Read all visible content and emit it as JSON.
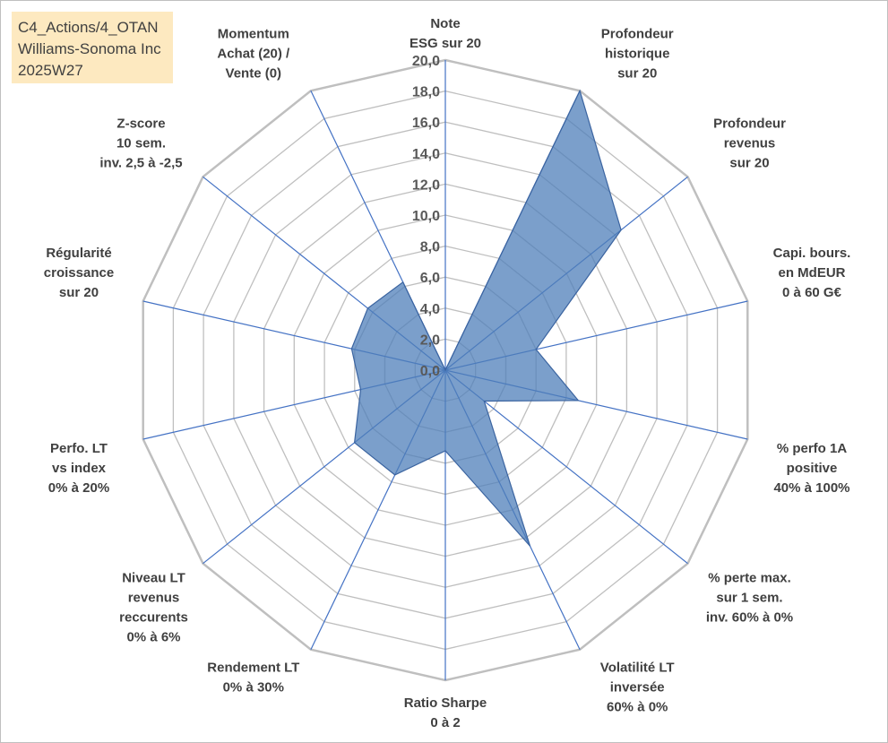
{
  "header": {
    "lines": [
      "C4_Actions/4_OTAN",
      "Williams-Sonoma Inc",
      "2025W27"
    ]
  },
  "chart_data": {
    "type": "radar",
    "rmin": 0,
    "rmax": 20,
    "tick_step": 2,
    "tick_labels": [
      "0,0",
      "2,0",
      "4,0",
      "6,0",
      "8,0",
      "10,0",
      "12,0",
      "14,0",
      "16,0",
      "18,0",
      "20,0"
    ],
    "axes": [
      {
        "label": [
          "Note",
          "ESG sur 20"
        ],
        "value": 0
      },
      {
        "label": [
          "Profondeur",
          "historique",
          "sur 20"
        ],
        "value": 20
      },
      {
        "label": [
          "Profondeur",
          "revenus",
          "sur 20"
        ],
        "value": 14.5
      },
      {
        "label": [
          "Capi. bours.",
          "en MdEUR",
          "0 à 60 G€"
        ],
        "value": 6
      },
      {
        "label": [
          "% perfo 1A",
          "positive",
          "40% à 100%"
        ],
        "value": 8.8
      },
      {
        "label": [
          "% perte max.",
          "sur 1 sem.",
          "inv. 60% à 0%"
        ],
        "value": 3.2
      },
      {
        "label": [
          "Volatilité LT",
          "inversée",
          "60% à 0%"
        ],
        "value": 12.6
      },
      {
        "label": [
          "Ratio Sharpe",
          "0 à 2"
        ],
        "value": 5.2
      },
      {
        "label": [
          "Rendement LT",
          "0% à 30%"
        ],
        "value": 7.5
      },
      {
        "label": [
          "Niveau LT",
          "revenus",
          "reccurents",
          "0% à 6%"
        ],
        "value": 7.5
      },
      {
        "label": [
          "Perfo. LT",
          "vs index",
          "0% à 20%"
        ],
        "value": 5.6
      },
      {
        "label": [
          "Régularité",
          "croissance",
          "sur 20"
        ],
        "value": 6.2
      },
      {
        "label": [
          "Z-score",
          "10 sem.",
          "inv. 2,5 à -2,5"
        ],
        "value": 6.4
      },
      {
        "label": [
          "Momentum",
          "Achat (20) /",
          "Vente (0)"
        ],
        "value": 6.3
      }
    ],
    "colors": {
      "grid": "#bfbfbf",
      "spoke": "#4472c4",
      "fill": "#4f7fba",
      "fill_opacity": "0.75",
      "series_line": "#3b64a0"
    },
    "grid": true,
    "legend": "none"
  }
}
